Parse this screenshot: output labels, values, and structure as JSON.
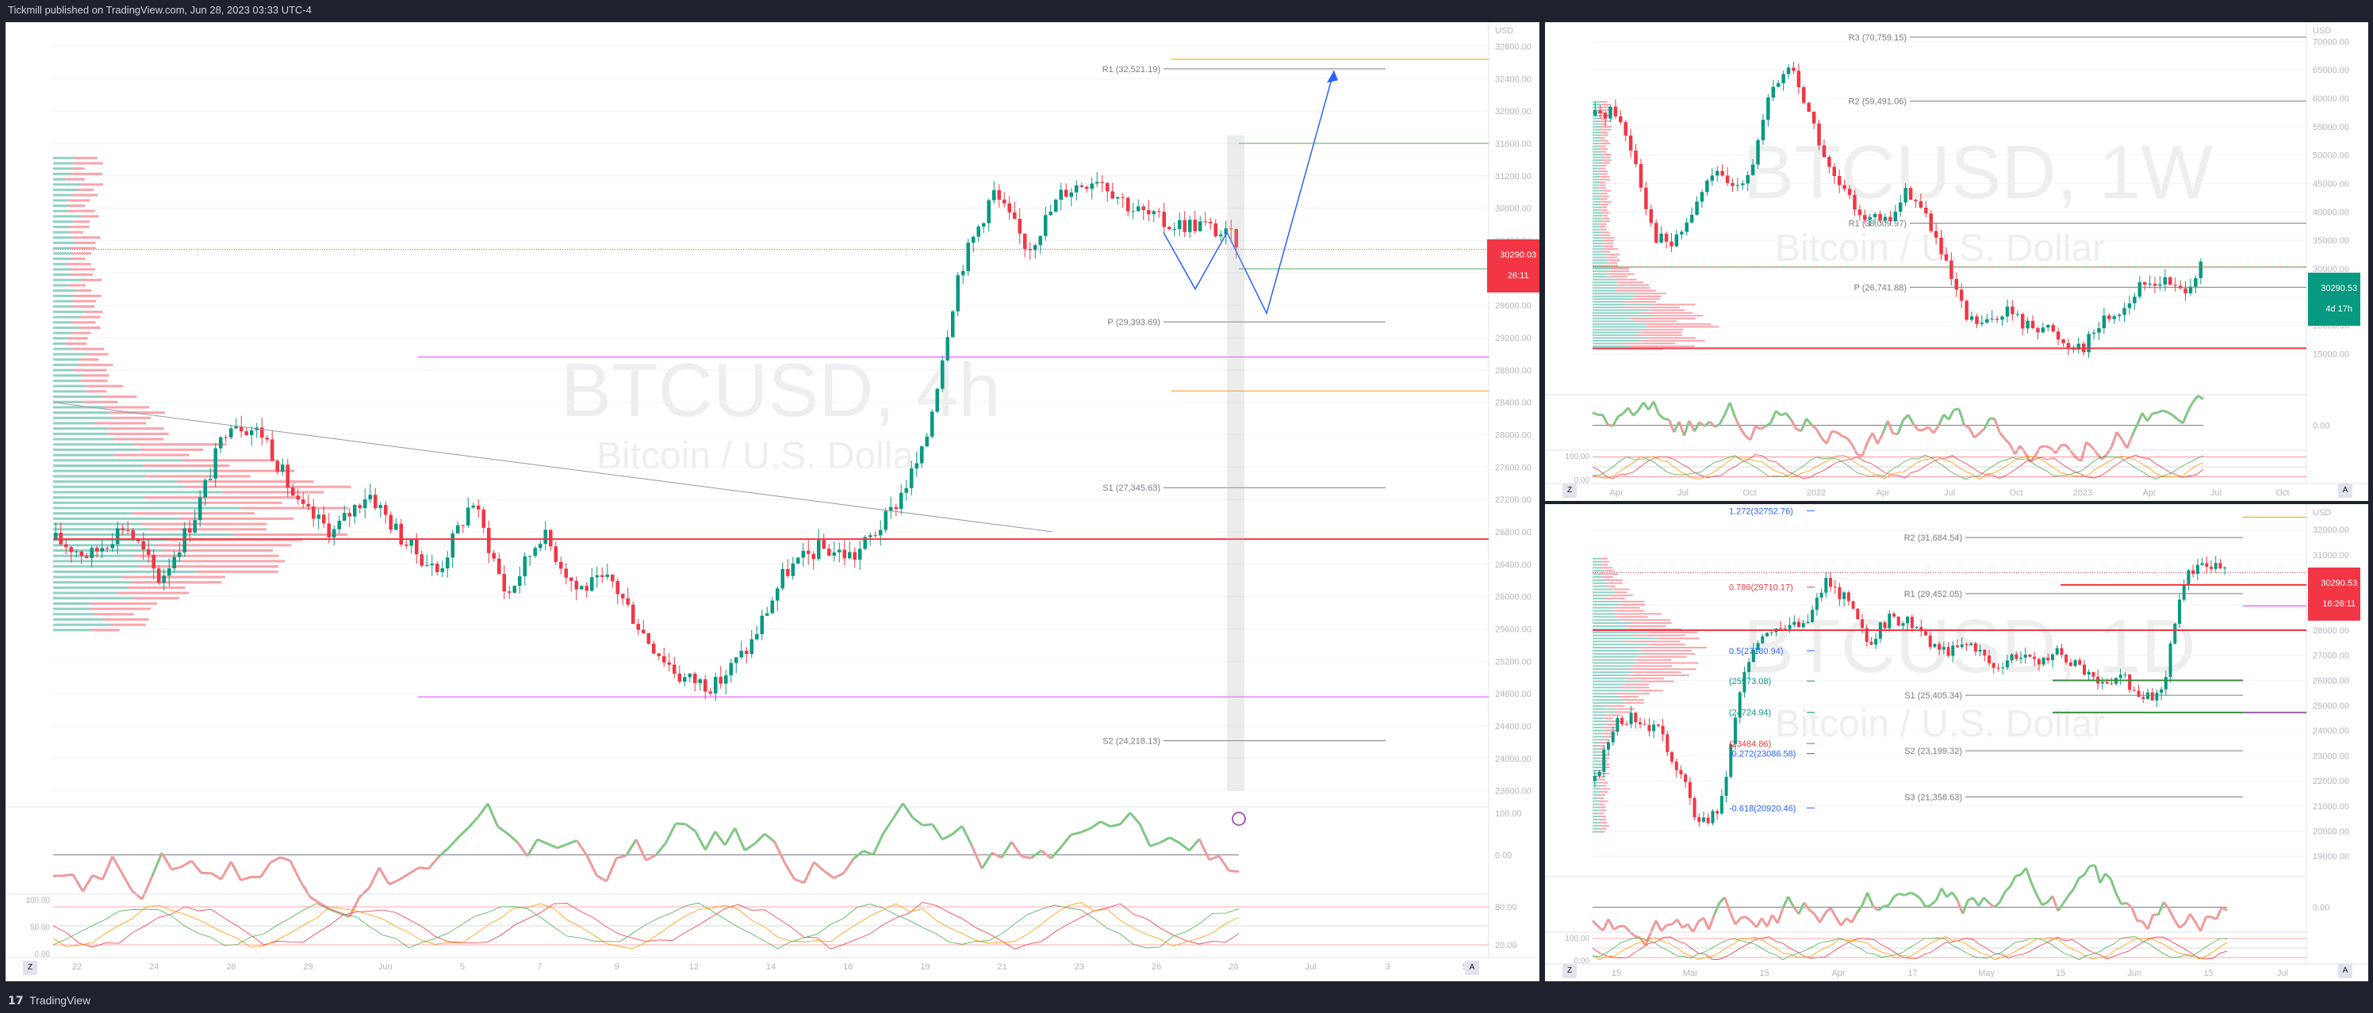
{
  "header": {
    "published_text": "Tickmill published on TradingView.com, Jun 28, 2023 03:33 UTC-4"
  },
  "footer": {
    "brand_mark": "17",
    "brand_text": "TradingView"
  },
  "colors": {
    "bull": "#089981",
    "bear": "#f23645",
    "pivot": "#787b86",
    "magenta": "#e040fb",
    "orange": "#ff9800",
    "green_line": "#4caf50",
    "blue_path": "#2962ff",
    "osc_green": "#81c784",
    "osc_red": "#ef9a9a"
  },
  "main_chart": {
    "watermark_symbol": "BTCUSD, 4h",
    "watermark_name": "Bitcoin / U.S. Dollar",
    "currency": "USD",
    "price_ticks": [
      "32800.00",
      "32400.00",
      "32000.00",
      "31600.00",
      "31200.00",
      "30800.00",
      "30400.00",
      "30000.00",
      "29600.00",
      "29200.00",
      "28800.00",
      "28400.00",
      "28000.00",
      "27600.00",
      "27200.00",
      "26800.00",
      "26400.00",
      "26000.00",
      "25600.00",
      "25200.00",
      "24800.00",
      "24400.00",
      "24000.00",
      "23600.00"
    ],
    "time_ticks": [
      "22",
      "24",
      "26",
      "29",
      "Jun",
      "5",
      "7",
      "9",
      "12",
      "14",
      "16",
      "19",
      "21",
      "23",
      "26",
      "28",
      "Jul",
      "3",
      "5"
    ],
    "current_price": "30290.03",
    "countdown": "26:11",
    "pivots": [
      {
        "label": "R1 (32,521.19)",
        "price": 32521.19
      },
      {
        "label": "P (29,393.69)",
        "price": 29393.69
      },
      {
        "label": "S1 (27,345.63)",
        "price": 27345.63
      },
      {
        "label": "S2 (24,218.13)",
        "price": 24218.13
      }
    ],
    "levels": {
      "red": 26710,
      "magenta_upper": 28960,
      "magenta_lower": 24760,
      "orange_low": 28540,
      "orange_high": 32640,
      "green_high": 31600,
      "green_low": 30050
    },
    "osc_ticks": [
      "100.00",
      "0.00"
    ],
    "stoch_ticks": [
      "100.00",
      "50.00",
      "0.00"
    ],
    "stoch_right_ticks": [
      "80.00",
      "20.00"
    ],
    "nav_left": "Z",
    "nav_right": "A"
  },
  "weekly_chart": {
    "watermark_symbol": "BTCUSD, 1W",
    "watermark_name": "Bitcoin / U.S. Dollar",
    "currency": "USD",
    "price_ticks": [
      "70000.00",
      "65000.00",
      "60000.00",
      "55000.00",
      "50000.00",
      "45000.00",
      "40000.00",
      "35000.00",
      "30000.00",
      "25000.00",
      "20000.00",
      "15000.00"
    ],
    "time_ticks": [
      "Apr",
      "Jul",
      "Oct",
      "2022",
      "Apr",
      "Jul",
      "Oct",
      "2023",
      "Apr",
      "Jul",
      "Oct"
    ],
    "current_price": "30290.53",
    "countdown": "4d 17h",
    "pivots": [
      {
        "label": "R3 (70,759.15)",
        "price": 70759.15
      },
      {
        "label": "R2 (59,491.06)",
        "price": 59491.06
      },
      {
        "label": "R1 (38,009.97)",
        "price": 38009.97
      },
      {
        "label": "P (26,741.88)",
        "price": 26741.88
      }
    ],
    "osc_ticks": [
      "0.00"
    ],
    "stoch_ticks": [
      "100.00",
      "0.00"
    ],
    "nav_left": "Z",
    "nav_right": "A"
  },
  "daily_chart": {
    "watermark_symbol": "BTCUSD, 1D",
    "watermark_name": "Bitcoin / U.S. Dollar",
    "currency": "USD",
    "price_ticks": [
      "32000.00",
      "31000.00",
      "30000.00",
      "29000.00",
      "28000.00",
      "27000.00",
      "26000.00",
      "25000.00",
      "24000.00",
      "23000.00",
      "22000.00",
      "21000.00",
      "20000.00",
      "19000.00"
    ],
    "time_ticks": [
      "15",
      "Mar",
      "15",
      "Apr",
      "17",
      "May",
      "15",
      "Jun",
      "15",
      "Jul"
    ],
    "current_price": "30290.53",
    "countdown": "16:26:11",
    "pivots": [
      {
        "label": "R2 (31,684.54)",
        "price": 31684.54
      },
      {
        "label": "R1 (29,452.05)",
        "price": 29452.05
      },
      {
        "label": "S1 (25,405.34)",
        "price": 25405.34
      },
      {
        "label": "S2 (23,199.32)",
        "price": 23199.32
      },
      {
        "label": "S3 (21,358.63)",
        "price": 21358.63
      }
    ],
    "fibs": [
      {
        "label": "1.272(32752.76)",
        "price": 32752.76,
        "color": "#2962ff"
      },
      {
        "label": "0.786(29710.17)",
        "price": 29710.17,
        "color": "#f23645"
      },
      {
        "label": "0.5(27180.94)",
        "price": 27180.94,
        "color": "#2962ff"
      },
      {
        "label": "(25973.08)",
        "price": 25973.08,
        "color": "#089981"
      },
      {
        "label": "(24724.94)",
        "price": 24724.94,
        "color": "#089981"
      },
      {
        "label": "-0.272(23086.58)",
        "price": 23086.58,
        "color": "#2962ff"
      },
      {
        "label": "(23484.86)",
        "price": 23484.86,
        "color": "#f23645"
      },
      {
        "label": "-0.618(20920.46)",
        "price": 20920.46,
        "color": "#2962ff"
      }
    ],
    "osc_ticks": [
      "0.00"
    ],
    "stoch_ticks": [
      "100.00",
      "0.00"
    ],
    "nav_left": "Z",
    "nav_right": "A"
  }
}
